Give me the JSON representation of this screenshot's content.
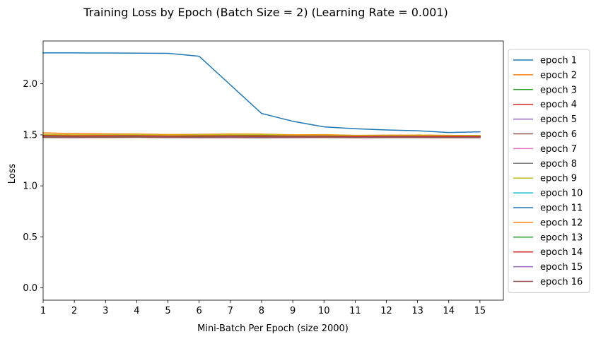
{
  "chart_data": {
    "type": "line",
    "title": "Training Loss by Epoch (Batch Size = 2) (Learning Rate = 0.001)",
    "xlabel": "Mini-Batch Per Epoch (size 2000)",
    "ylabel": "Loss",
    "x": [
      1,
      2,
      3,
      4,
      5,
      6,
      7,
      8,
      9,
      10,
      11,
      12,
      13,
      14,
      15
    ],
    "xticks": [
      "1",
      "2",
      "3",
      "4",
      "5",
      "6",
      "7",
      "8",
      "9",
      "10",
      "11",
      "12",
      "13",
      "14",
      "15"
    ],
    "yticks": [
      "0.0",
      "0.5",
      "1.0",
      "1.5",
      "2.0"
    ],
    "xlim": [
      1,
      15.75
    ],
    "ylim": [
      -0.12,
      2.42
    ],
    "grid": false,
    "legend_position": "outside-right",
    "series": [
      {
        "name": "epoch 1",
        "color": "#1f77b4",
        "values": [
          2.303,
          2.303,
          2.302,
          2.301,
          2.299,
          2.27,
          1.99,
          1.71,
          1.633,
          1.578,
          1.56,
          1.548,
          1.54,
          1.523,
          1.53
        ]
      },
      {
        "name": "epoch 2",
        "color": "#ff7f0e",
        "values": [
          1.52,
          1.512,
          1.51,
          1.508,
          1.503,
          1.505,
          1.508,
          1.507,
          1.5,
          1.502,
          1.495,
          1.497,
          1.498,
          1.495,
          1.493
        ]
      },
      {
        "name": "epoch 3",
        "color": "#2ca02c",
        "values": [
          1.498,
          1.495,
          1.497,
          1.5,
          1.496,
          1.494,
          1.497,
          1.498,
          1.492,
          1.494,
          1.49,
          1.493,
          1.492,
          1.49,
          1.489
        ]
      },
      {
        "name": "epoch 4",
        "color": "#d62728",
        "values": [
          1.493,
          1.49,
          1.492,
          1.491,
          1.489,
          1.49,
          1.488,
          1.49,
          1.487,
          1.489,
          1.486,
          1.488,
          1.487,
          1.486,
          1.485
        ]
      },
      {
        "name": "epoch 5",
        "color": "#9467bd",
        "values": [
          1.485,
          1.483,
          1.484,
          1.486,
          1.482,
          1.483,
          1.484,
          1.481,
          1.482,
          1.483,
          1.481,
          1.482,
          1.481,
          1.48,
          1.481
        ]
      },
      {
        "name": "epoch 6",
        "color": "#8c564b",
        "values": [
          1.48,
          1.479,
          1.48,
          1.481,
          1.478,
          1.479,
          1.48,
          1.477,
          1.479,
          1.479,
          1.477,
          1.478,
          1.479,
          1.477,
          1.478
        ]
      },
      {
        "name": "epoch 7",
        "color": "#e377c2",
        "values": [
          1.482,
          1.481,
          1.482,
          1.48,
          1.481,
          1.48,
          1.481,
          1.479,
          1.48,
          1.481,
          1.479,
          1.48,
          1.48,
          1.479,
          1.479
        ]
      },
      {
        "name": "epoch 8",
        "color": "#7f7f7f",
        "values": [
          1.478,
          1.477,
          1.478,
          1.479,
          1.477,
          1.476,
          1.477,
          1.478,
          1.476,
          1.477,
          1.476,
          1.477,
          1.476,
          1.476,
          1.477
        ]
      },
      {
        "name": "epoch 9",
        "color": "#bcbd22",
        "values": [
          1.505,
          1.5,
          1.502,
          1.503,
          1.498,
          1.5,
          1.502,
          1.504,
          1.497,
          1.499,
          1.494,
          1.496,
          1.495,
          1.493,
          1.494
        ]
      },
      {
        "name": "epoch 10",
        "color": "#17becf",
        "values": [
          1.488,
          1.486,
          1.487,
          1.488,
          1.485,
          1.486,
          1.487,
          1.485,
          1.486,
          1.485,
          1.484,
          1.485,
          1.484,
          1.483,
          1.484
        ]
      },
      {
        "name": "epoch 11",
        "color": "#1f77b4",
        "values": [
          1.484,
          1.482,
          1.483,
          1.484,
          1.481,
          1.482,
          1.483,
          1.481,
          1.482,
          1.482,
          1.48,
          1.481,
          1.481,
          1.48,
          1.48
        ]
      },
      {
        "name": "epoch 12",
        "color": "#ff7f0e",
        "values": [
          1.49,
          1.488,
          1.489,
          1.49,
          1.487,
          1.488,
          1.489,
          1.487,
          1.488,
          1.488,
          1.486,
          1.487,
          1.487,
          1.486,
          1.486
        ]
      },
      {
        "name": "epoch 13",
        "color": "#2ca02c",
        "values": [
          1.486,
          1.484,
          1.485,
          1.486,
          1.483,
          1.484,
          1.485,
          1.483,
          1.484,
          1.484,
          1.482,
          1.483,
          1.483,
          1.482,
          1.482
        ]
      },
      {
        "name": "epoch 14",
        "color": "#d62728",
        "values": [
          1.489,
          1.487,
          1.488,
          1.489,
          1.486,
          1.487,
          1.488,
          1.486,
          1.487,
          1.487,
          1.485,
          1.486,
          1.486,
          1.485,
          1.485
        ]
      },
      {
        "name": "epoch 15",
        "color": "#9467bd",
        "values": [
          1.476,
          1.475,
          1.476,
          1.477,
          1.475,
          1.474,
          1.476,
          1.474,
          1.475,
          1.476,
          1.474,
          1.475,
          1.475,
          1.474,
          1.475
        ]
      },
      {
        "name": "epoch 16",
        "color": "#8c564b",
        "values": [
          1.474,
          1.473,
          1.474,
          1.475,
          1.473,
          1.472,
          1.473,
          1.471,
          1.473,
          1.474,
          1.472,
          1.473,
          1.473,
          1.472,
          1.472
        ]
      }
    ]
  }
}
